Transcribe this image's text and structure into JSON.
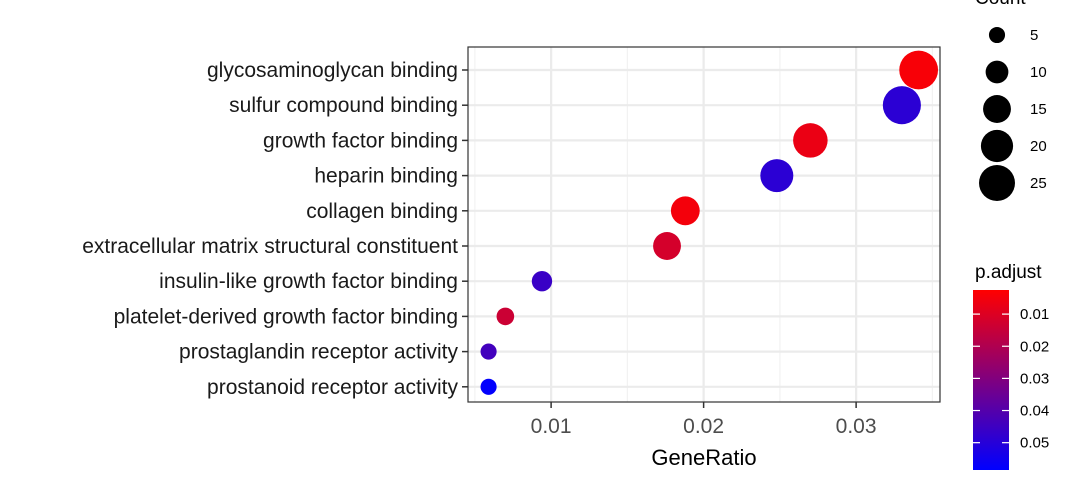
{
  "chart_data": {
    "type": "scatter",
    "xlabel": "GeneRatio",
    "ylabel": "",
    "xlim": [
      0.00455,
      0.0355
    ],
    "x_ticks": [
      0.01,
      0.02,
      0.03
    ],
    "x_tick_labels": [
      "0.01",
      "0.02",
      "0.03"
    ],
    "grid": true,
    "categories": [
      "glycosaminoglycan binding",
      "sulfur compound binding",
      "growth factor binding",
      "heparin binding",
      "collagen binding",
      "extracellular matrix structural constituent",
      "insulin-like growth factor binding",
      "platelet-derived growth factor binding",
      "prostaglandin receptor activity",
      "prostanoid receptor activity"
    ],
    "points": [
      {
        "term": "glycosaminoglycan binding",
        "gene_ratio": 0.0341,
        "count": 29,
        "p_adjust": 0.004
      },
      {
        "term": "sulfur compound binding",
        "gene_ratio": 0.033,
        "count": 28,
        "p_adjust": 0.049
      },
      {
        "term": "growth factor binding",
        "gene_ratio": 0.027,
        "count": 23,
        "p_adjust": 0.007
      },
      {
        "term": "heparin binding",
        "gene_ratio": 0.0248,
        "count": 21,
        "p_adjust": 0.049
      },
      {
        "term": "collagen binding",
        "gene_ratio": 0.0188,
        "count": 16,
        "p_adjust": 0.005
      },
      {
        "term": "extracellular matrix structural constituent",
        "gene_ratio": 0.0176,
        "count": 15,
        "p_adjust": 0.012
      },
      {
        "term": "insulin-like growth factor binding",
        "gene_ratio": 0.0094,
        "count": 8,
        "p_adjust": 0.046
      },
      {
        "term": "platelet-derived growth factor binding",
        "gene_ratio": 0.007,
        "count": 6,
        "p_adjust": 0.014
      },
      {
        "term": "prostaglandin receptor activity",
        "gene_ratio": 0.0059,
        "count": 5,
        "p_adjust": 0.044
      },
      {
        "term": "prostanoid receptor activity",
        "gene_ratio": 0.0059,
        "count": 5,
        "p_adjust": 0.058
      }
    ],
    "legend_size": {
      "title": "Count",
      "values": [
        5,
        10,
        15,
        20,
        25
      ],
      "labels": [
        "5",
        "10",
        "15",
        "20",
        "25"
      ],
      "placement": "right"
    },
    "legend_color": {
      "title": "p.adjust",
      "range": [
        0.0025,
        0.0585
      ],
      "ticks": [
        0.01,
        0.02,
        0.03,
        0.04,
        0.05
      ],
      "labels": [
        "0.01",
        "0.02",
        "0.03",
        "0.04",
        "0.05"
      ],
      "low_color": "#ff0000",
      "high_color": "#0000ff",
      "placement": "right"
    }
  }
}
